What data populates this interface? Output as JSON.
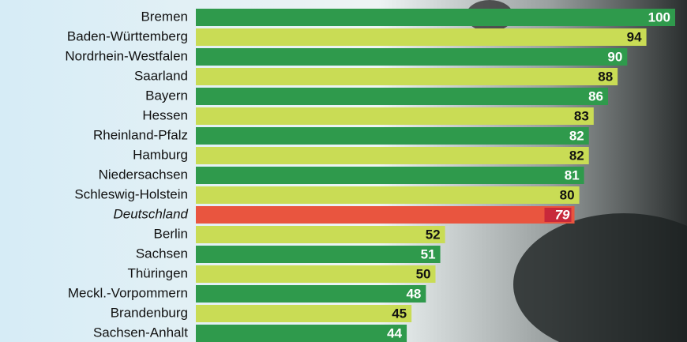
{
  "chart_data": {
    "type": "bar",
    "orientation": "horizontal",
    "categories": [
      "Bremen",
      "Baden-Württemberg",
      "Nordrhein-Westfalen",
      "Saarland",
      "Bayern",
      "Hessen",
      "Rheinland-Pfalz",
      "Hamburg",
      "Niedersachsen",
      "Schleswig-Holstein",
      "Deutschland",
      "Berlin",
      "Sachsen",
      "Thüringen",
      "Meckl.-Vorpommern",
      "Brandenburg",
      "Sachsen-Anhalt"
    ],
    "values": [
      100,
      94,
      90,
      88,
      86,
      83,
      82,
      82,
      81,
      80,
      79,
      52,
      51,
      50,
      48,
      45,
      44
    ],
    "colors": [
      "#2f9a4c",
      "#c9dc55",
      "#2f9a4c",
      "#c9dc55",
      "#2f9a4c",
      "#c9dc55",
      "#2f9a4c",
      "#c9dc55",
      "#2f9a4c",
      "#c9dc55",
      "#e9553f",
      "#c9dc55",
      "#2f9a4c",
      "#c9dc55",
      "#2f9a4c",
      "#c9dc55",
      "#2f9a4c"
    ],
    "highlight_index": 10,
    "xlim": [
      0,
      100
    ]
  }
}
